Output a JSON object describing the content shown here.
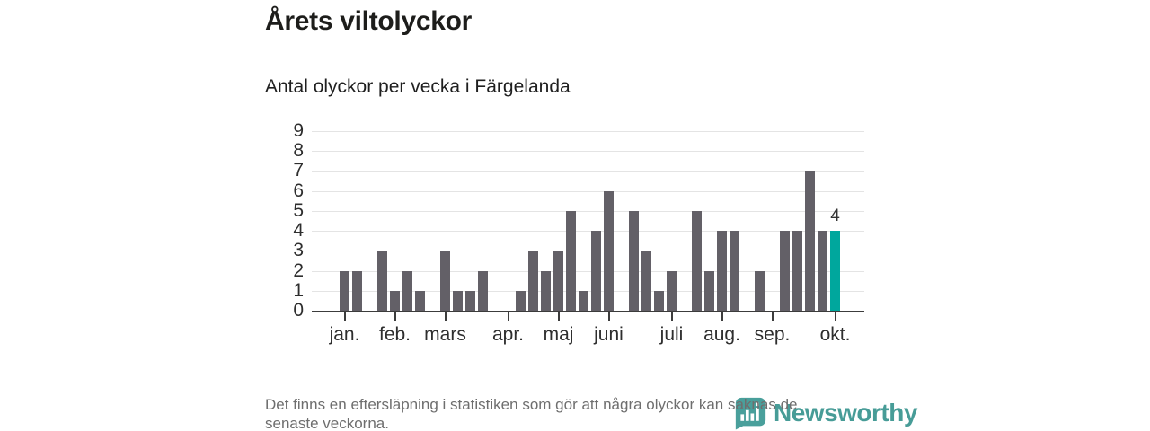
{
  "header": {
    "title": "Årets viltolyckor",
    "subtitle": "Antal olyckor per vecka i Färgelanda"
  },
  "footer": {
    "note_line1": "Det finns en eftersläpning i statistiken som gör att några olyckor kan saknas de",
    "note_line2": "senaste veckorna.",
    "logo_text": "Newsworthy"
  },
  "chart_data": {
    "type": "bar",
    "title": "Årets viltolyckor",
    "subtitle": "Antal olyckor per vecka i Färgelanda",
    "xlabel": "",
    "ylabel": "",
    "values": [
      2,
      2,
      0,
      3,
      1,
      2,
      1,
      0,
      3,
      1,
      1,
      2,
      0,
      0,
      1,
      3,
      2,
      3,
      5,
      1,
      4,
      6,
      0,
      5,
      3,
      1,
      2,
      0,
      5,
      2,
      4,
      4,
      0,
      2,
      0,
      4,
      4,
      7,
      4,
      4
    ],
    "month_ticks": [
      {
        "index": 0,
        "label": "jan."
      },
      {
        "index": 4,
        "label": "feb."
      },
      {
        "index": 8,
        "label": "mars"
      },
      {
        "index": 13,
        "label": "apr."
      },
      {
        "index": 17,
        "label": "maj"
      },
      {
        "index": 21,
        "label": "juni"
      },
      {
        "index": 26,
        "label": "juli"
      },
      {
        "index": 30,
        "label": "aug."
      },
      {
        "index": 34,
        "label": "sep."
      },
      {
        "index": 39,
        "label": "okt."
      }
    ],
    "yticks": [
      0,
      1,
      2,
      3,
      4,
      5,
      6,
      7,
      8,
      9
    ],
    "ylim": [
      0,
      9
    ],
    "grid": true,
    "legend_position": "none",
    "highlight_index": 39,
    "highlight_label": "4",
    "colors": {
      "bar": "#636067",
      "highlight": "#00a79d",
      "grid": "#e4e4e4",
      "axis": "#3c3c3c",
      "tick_text": "#2e2e2e",
      "title_text": "#1d1d1b",
      "note_text": "#6e6e6e",
      "logo": "#38948f"
    }
  }
}
